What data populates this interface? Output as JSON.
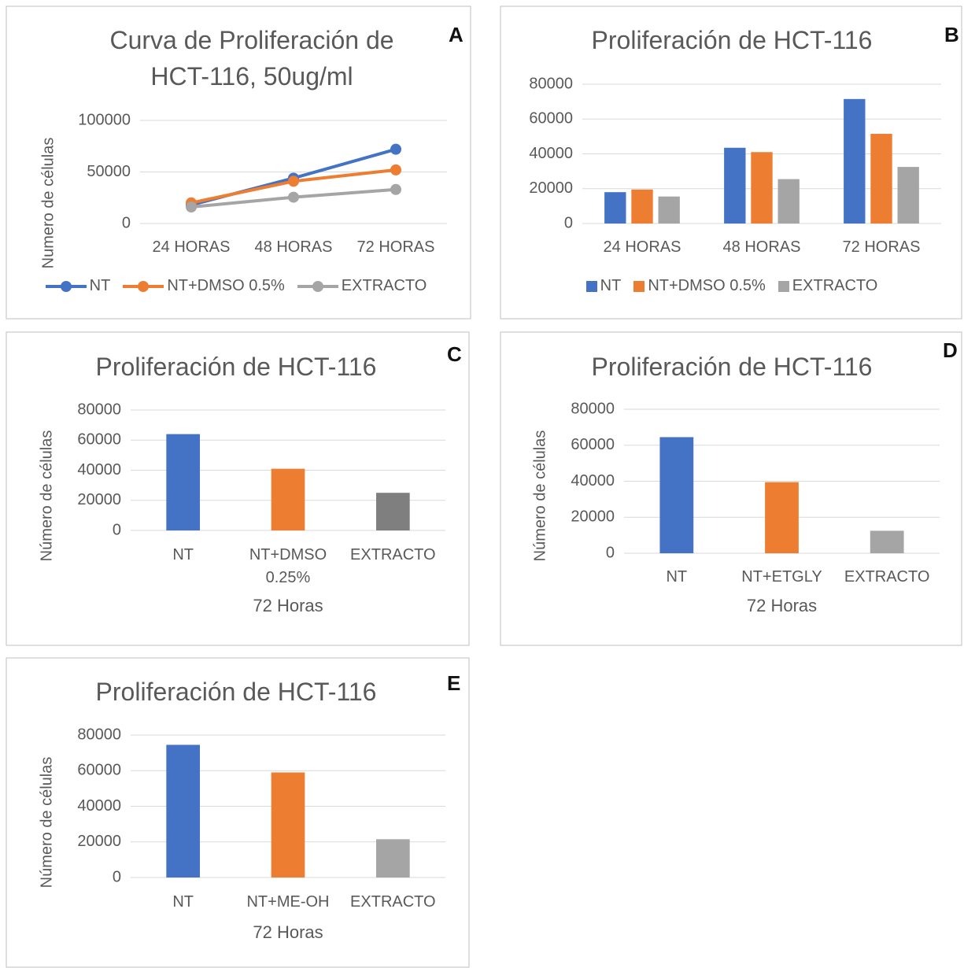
{
  "chart_data": [
    {
      "type": "line",
      "panel_label": "A",
      "title": "Curva de Proliferación de HCT-116, 50ug/ml",
      "ylabel": "Numero de células",
      "categories": [
        "24 HORAS",
        "48 HORAS",
        "72 HORAS"
      ],
      "series": [
        {
          "name": "NT",
          "color": "#4472c4",
          "values": [
            18000,
            44000,
            72000
          ]
        },
        {
          "name": "NT+DMSO 0.5%",
          "color": "#ed7d31",
          "values": [
            20000,
            41000,
            52000
          ]
        },
        {
          "name": "EXTRACTO",
          "color": "#a5a5a5",
          "values": [
            16000,
            25500,
            33000
          ]
        }
      ],
      "ylim": [
        0,
        100000
      ],
      "yticks": [
        0,
        50000,
        100000
      ],
      "grid": true
    },
    {
      "type": "bar",
      "panel_label": "B",
      "title": "Proliferación de HCT-116",
      "categories": [
        "24 HORAS",
        "48 HORAS",
        "72 HORAS"
      ],
      "series": [
        {
          "name": "NT",
          "color": "#4472c4",
          "values": [
            18000,
            43500,
            71500
          ]
        },
        {
          "name": "NT+DMSO 0.5%",
          "color": "#ed7d31",
          "values": [
            19500,
            41000,
            51500
          ]
        },
        {
          "name": "EXTRACTO",
          "color": "#a5a5a5",
          "values": [
            15500,
            25500,
            32500
          ]
        }
      ],
      "ylim": [
        0,
        80000
      ],
      "yticks": [
        0,
        20000,
        40000,
        60000,
        80000
      ],
      "grid": true
    },
    {
      "type": "bar",
      "panel_label": "C",
      "title": "Proliferación de HCT-116",
      "ylabel": "Número de células",
      "xlabel": "72 Horas",
      "categories": [
        "NT",
        "NT+DMSO 0.25%",
        "EXTRACTO"
      ],
      "values": [
        64000,
        41000,
        25000
      ],
      "colors": [
        "#4472c4",
        "#ed7d31",
        "#7f7f7f"
      ],
      "ylim": [
        0,
        80000
      ],
      "yticks": [
        0,
        20000,
        40000,
        60000,
        80000
      ],
      "grid": true
    },
    {
      "type": "bar",
      "panel_label": "D",
      "title": "Proliferación de HCT-116",
      "ylabel": "Número de células",
      "xlabel": "72 Horas",
      "categories": [
        "NT",
        "NT+ETGLY",
        "EXTRACTO"
      ],
      "values": [
        64500,
        39500,
        12500
      ],
      "colors": [
        "#4472c4",
        "#ed7d31",
        "#a5a5a5"
      ],
      "ylim": [
        0,
        80000
      ],
      "yticks": [
        0,
        20000,
        40000,
        60000,
        80000
      ],
      "grid": true
    },
    {
      "type": "bar",
      "panel_label": "E",
      "title": "Proliferación de HCT-116",
      "ylabel": "Número de células",
      "xlabel": "72 Horas",
      "categories": [
        "NT",
        "NT+ME-OH",
        "EXTRACTO"
      ],
      "values": [
        74500,
        59000,
        21500
      ],
      "colors": [
        "#4472c4",
        "#ed7d31",
        "#a5a5a5"
      ],
      "ylim": [
        0,
        80000
      ],
      "yticks": [
        0,
        20000,
        40000,
        60000,
        80000
      ],
      "grid": true
    }
  ]
}
